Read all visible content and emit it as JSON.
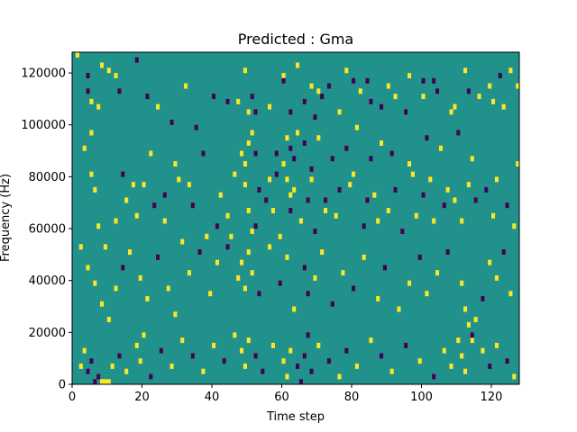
{
  "chart_data": {
    "type": "heatmap",
    "title": "Predicted : Gma",
    "xlabel": "Time step",
    "ylabel": "Frequency (Hz)",
    "xlim": [
      0,
      128
    ],
    "ylim": [
      0,
      128000
    ],
    "x_ticks": [
      0,
      20,
      40,
      60,
      80,
      100,
      120
    ],
    "y_ticks": [
      0,
      20000,
      40000,
      60000,
      80000,
      100000,
      120000
    ],
    "rows": 64,
    "cols": 128,
    "background_value": 0,
    "colormap": {
      "-1": "#440154",
      "0": "#21918c",
      "1": "#fde725"
    },
    "cells": [
      [
        1,
        63,
        1
      ],
      [
        4,
        59,
        -1
      ],
      [
        4,
        56,
        -1
      ],
      [
        5,
        54,
        1
      ],
      [
        5,
        48,
        1
      ],
      [
        8,
        61,
        1
      ],
      [
        7,
        53,
        1
      ],
      [
        10,
        60,
        1
      ],
      [
        12,
        59,
        1
      ],
      [
        13,
        56,
        -1
      ],
      [
        18,
        62,
        -1
      ],
      [
        21,
        55,
        -1
      ],
      [
        24,
        53,
        1
      ],
      [
        28,
        50,
        -1
      ],
      [
        32,
        57,
        1
      ],
      [
        35,
        49,
        -1
      ],
      [
        40,
        55,
        -1
      ],
      [
        44,
        54,
        -1
      ],
      [
        47,
        54,
        1
      ],
      [
        52,
        52,
        -1
      ],
      [
        56,
        53,
        1
      ],
      [
        60,
        59,
        1
      ],
      [
        64,
        61,
        1
      ],
      [
        70,
        56,
        1
      ],
      [
        73,
        57,
        -1
      ],
      [
        78,
        60,
        1
      ],
      [
        82,
        56,
        1
      ],
      [
        84,
        58,
        -1
      ],
      [
        88,
        53,
        -1
      ],
      [
        92,
        55,
        1
      ],
      [
        96,
        59,
        1
      ],
      [
        100,
        58,
        -1
      ],
      [
        104,
        56,
        -1
      ],
      [
        108,
        52,
        1
      ],
      [
        112,
        60,
        1
      ],
      [
        116,
        55,
        1
      ],
      [
        120,
        54,
        1
      ],
      [
        122,
        59,
        -1
      ],
      [
        125,
        60,
        1
      ],
      [
        127,
        57,
        1
      ],
      [
        3,
        45,
        1
      ],
      [
        5,
        40,
        1
      ],
      [
        6,
        37,
        1
      ],
      [
        7,
        30,
        1
      ],
      [
        9,
        26,
        1
      ],
      [
        12,
        31,
        1
      ],
      [
        15,
        35,
        1
      ],
      [
        18,
        32,
        1
      ],
      [
        20,
        38,
        1
      ],
      [
        23,
        34,
        -1
      ],
      [
        26,
        31,
        1
      ],
      [
        30,
        39,
        1
      ],
      [
        34,
        34,
        -1
      ],
      [
        38,
        28,
        1
      ],
      [
        42,
        36,
        1
      ],
      [
        46,
        40,
        1
      ],
      [
        49,
        38,
        1
      ],
      [
        52,
        30,
        -1
      ],
      [
        55,
        35,
        -1
      ],
      [
        58,
        40,
        -1
      ],
      [
        62,
        36,
        1
      ],
      [
        65,
        31,
        1
      ],
      [
        68,
        39,
        1
      ],
      [
        72,
        35,
        -1
      ],
      [
        75,
        32,
        1
      ],
      [
        79,
        38,
        1
      ],
      [
        83,
        30,
        -1
      ],
      [
        86,
        36,
        1
      ],
      [
        90,
        33,
        1
      ],
      [
        94,
        29,
        -1
      ],
      [
        98,
        32,
        1
      ],
      [
        102,
        39,
        1
      ],
      [
        106,
        34,
        -1
      ],
      [
        109,
        35,
        1
      ],
      [
        113,
        38,
        1
      ],
      [
        118,
        37,
        -1
      ],
      [
        121,
        39,
        1
      ],
      [
        124,
        34,
        -1
      ],
      [
        126,
        30,
        1
      ],
      [
        127,
        42,
        1
      ],
      [
        2,
        26,
        1
      ],
      [
        4,
        22,
        1
      ],
      [
        6,
        19,
        1
      ],
      [
        8,
        15,
        1
      ],
      [
        10,
        12,
        1
      ],
      [
        12,
        18,
        1
      ],
      [
        14,
        22,
        -1
      ],
      [
        16,
        25,
        1
      ],
      [
        19,
        20,
        1
      ],
      [
        21,
        16,
        1
      ],
      [
        24,
        24,
        -1
      ],
      [
        27,
        18,
        1
      ],
      [
        29,
        13,
        1
      ],
      [
        31,
        27,
        1
      ],
      [
        33,
        21,
        1
      ],
      [
        36,
        25,
        -1
      ],
      [
        39,
        17,
        1
      ],
      [
        41,
        23,
        1
      ],
      [
        44,
        26,
        -1
      ],
      [
        47,
        20,
        1
      ],
      [
        48,
        23,
        1
      ],
      [
        49,
        18,
        1
      ],
      [
        50,
        25,
        1
      ],
      [
        51,
        21,
        1
      ],
      [
        53,
        17,
        -1
      ],
      [
        56,
        26,
        1
      ],
      [
        59,
        19,
        -1
      ],
      [
        61,
        24,
        1
      ],
      [
        63,
        14,
        1
      ],
      [
        66,
        22,
        -1
      ],
      [
        67,
        17,
        -1
      ],
      [
        69,
        20,
        1
      ],
      [
        71,
        25,
        1
      ],
      [
        74,
        15,
        -1
      ],
      [
        77,
        21,
        1
      ],
      [
        80,
        18,
        -1
      ],
      [
        83,
        24,
        1
      ],
      [
        87,
        16,
        1
      ],
      [
        89,
        22,
        -1
      ],
      [
        93,
        14,
        1
      ],
      [
        96,
        19,
        1
      ],
      [
        99,
        24,
        -1
      ],
      [
        101,
        17,
        1
      ],
      [
        104,
        21,
        1
      ],
      [
        107,
        25,
        -1
      ],
      [
        111,
        19,
        1
      ],
      [
        112,
        14,
        1
      ],
      [
        113,
        11,
        1
      ],
      [
        114,
        8,
        1
      ],
      [
        115,
        12,
        1
      ],
      [
        117,
        16,
        -1
      ],
      [
        119,
        23,
        1
      ],
      [
        121,
        20,
        1
      ],
      [
        123,
        25,
        -1
      ],
      [
        125,
        17,
        1
      ],
      [
        2,
        3,
        1
      ],
      [
        3,
        6,
        1
      ],
      [
        4,
        2,
        -1
      ],
      [
        5,
        4,
        -1
      ],
      [
        6,
        0,
        -1
      ],
      [
        7,
        1,
        -1
      ],
      [
        8,
        0,
        1
      ],
      [
        9,
        0,
        1
      ],
      [
        10,
        0,
        1
      ],
      [
        11,
        3,
        1
      ],
      [
        13,
        5,
        -1
      ],
      [
        15,
        2,
        1
      ],
      [
        18,
        7,
        1
      ],
      [
        19,
        4,
        1
      ],
      [
        20,
        9,
        1
      ],
      [
        22,
        1,
        -1
      ],
      [
        25,
        6,
        -1
      ],
      [
        28,
        3,
        1
      ],
      [
        31,
        8,
        1
      ],
      [
        34,
        5,
        -1
      ],
      [
        37,
        2,
        1
      ],
      [
        40,
        7,
        1
      ],
      [
        43,
        4,
        -1
      ],
      [
        46,
        9,
        1
      ],
      [
        48,
        6,
        1
      ],
      [
        49,
        3,
        1
      ],
      [
        50,
        8,
        1
      ],
      [
        52,
        5,
        -1
      ],
      [
        54,
        2,
        -1
      ],
      [
        57,
        7,
        1
      ],
      [
        60,
        4,
        1
      ],
      [
        61,
        1,
        1
      ],
      [
        62,
        6,
        1
      ],
      [
        64,
        3,
        -1
      ],
      [
        65,
        0,
        -1
      ],
      [
        66,
        5,
        -1
      ],
      [
        67,
        9,
        -1
      ],
      [
        68,
        2,
        -1
      ],
      [
        70,
        7,
        1
      ],
      [
        73,
        4,
        -1
      ],
      [
        76,
        1,
        1
      ],
      [
        78,
        6,
        -1
      ],
      [
        81,
        3,
        1
      ],
      [
        85,
        8,
        1
      ],
      [
        88,
        5,
        -1
      ],
      [
        91,
        2,
        1
      ],
      [
        95,
        7,
        -1
      ],
      [
        99,
        4,
        1
      ],
      [
        103,
        1,
        -1
      ],
      [
        106,
        6,
        1
      ],
      [
        108,
        3,
        1
      ],
      [
        110,
        8,
        1
      ],
      [
        111,
        5,
        1
      ],
      [
        112,
        2,
        1
      ],
      [
        114,
        9,
        -1
      ],
      [
        117,
        6,
        1
      ],
      [
        119,
        3,
        -1
      ],
      [
        121,
        7,
        1
      ],
      [
        124,
        4,
        -1
      ],
      [
        126,
        1,
        1
      ],
      [
        48,
        44,
        1
      ],
      [
        49,
        42,
        1
      ],
      [
        50,
        46,
        1
      ],
      [
        51,
        48,
        1
      ],
      [
        52,
        44,
        -1
      ],
      [
        58,
        44,
        -1
      ],
      [
        60,
        42,
        1
      ],
      [
        61,
        47,
        1
      ],
      [
        62,
        45,
        -1
      ],
      [
        63,
        43,
        -1
      ],
      [
        64,
        48,
        1
      ],
      [
        66,
        46,
        -1
      ],
      [
        68,
        41,
        -1
      ],
      [
        70,
        47,
        1
      ],
      [
        74,
        43,
        -1
      ],
      [
        78,
        45,
        -1
      ],
      [
        81,
        49,
        1
      ],
      [
        85,
        43,
        -1
      ],
      [
        88,
        46,
        1
      ],
      [
        91,
        44,
        -1
      ],
      [
        96,
        42,
        1
      ],
      [
        101,
        47,
        -1
      ],
      [
        105,
        45,
        1
      ],
      [
        110,
        48,
        -1
      ],
      [
        114,
        43,
        1
      ],
      [
        49,
        60,
        1
      ],
      [
        50,
        52,
        1
      ],
      [
        51,
        55,
        -1
      ],
      [
        60,
        58,
        -1
      ],
      [
        62,
        52,
        -1
      ],
      [
        66,
        54,
        -1
      ],
      [
        68,
        57,
        1
      ],
      [
        69,
        51,
        -1
      ],
      [
        71,
        55,
        -1
      ],
      [
        76,
        52,
        1
      ],
      [
        80,
        58,
        -1
      ],
      [
        85,
        54,
        -1
      ],
      [
        90,
        57,
        1
      ],
      [
        95,
        52,
        -1
      ],
      [
        100,
        55,
        1
      ],
      [
        103,
        58,
        -1
      ],
      [
        109,
        53,
        1
      ],
      [
        113,
        56,
        -1
      ],
      [
        119,
        57,
        1
      ],
      [
        123,
        53,
        1
      ],
      [
        14,
        40,
        -1
      ],
      [
        17,
        38,
        1
      ],
      [
        22,
        44,
        1
      ],
      [
        26,
        36,
        -1
      ],
      [
        29,
        42,
        1
      ],
      [
        33,
        38,
        1
      ],
      [
        37,
        44,
        -1
      ],
      [
        41,
        30,
        -1
      ],
      [
        44,
        32,
        1
      ],
      [
        45,
        28,
        1
      ],
      [
        50,
        33,
        1
      ],
      [
        51,
        29,
        1
      ],
      [
        53,
        37,
        -1
      ],
      [
        56,
        39,
        1
      ],
      [
        57,
        33,
        1
      ],
      [
        59,
        28,
        1
      ],
      [
        61,
        39,
        1
      ],
      [
        62,
        33,
        -1
      ],
      [
        63,
        37,
        1
      ],
      [
        67,
        35,
        -1
      ],
      [
        69,
        29,
        -1
      ],
      [
        72,
        33,
        1
      ],
      [
        76,
        37,
        -1
      ],
      [
        80,
        40,
        1
      ],
      [
        84,
        35,
        -1
      ],
      [
        87,
        31,
        1
      ],
      [
        92,
        37,
        -1
      ],
      [
        97,
        40,
        1
      ],
      [
        100,
        36,
        -1
      ],
      [
        103,
        31,
        1
      ],
      [
        107,
        37,
        1
      ],
      [
        111,
        31,
        1
      ],
      [
        115,
        35,
        -1
      ],
      [
        120,
        32,
        1
      ]
    ]
  }
}
